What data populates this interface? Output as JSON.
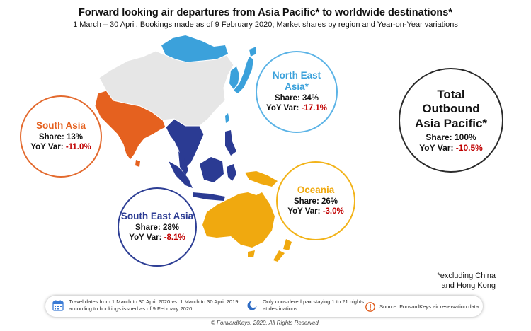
{
  "header": {
    "title": "Forward looking air departures from Asia Pacific* to worldwide destinations*",
    "subtitle": "1 March – 30 April. Bookings made as of 9 February 2020; Market shares by region and Year-on-Year variations"
  },
  "regions": {
    "north_east_asia": {
      "name": "North East Asia*",
      "share": "Share: 34%",
      "yoy_label": "YoY Var:",
      "yoy_value": "-17.1%",
      "color": "#3ba1db"
    },
    "south_asia": {
      "name": "South Asia",
      "share": "Share: 13%",
      "yoy_label": "YoY Var:",
      "yoy_value": "-11.0%",
      "color": "#e5611f"
    },
    "south_east_asia": {
      "name": "South East Asia",
      "share": "Share: 28%",
      "yoy_label": "YoY Var:",
      "yoy_value": "-8.1%",
      "color": "#2b3b93"
    },
    "oceania": {
      "name": "Oceania",
      "share": "Share: 26%",
      "yoy_label": "YoY Var:",
      "yoy_value": "-3.0%",
      "color": "#f0a90f"
    },
    "total": {
      "name": "Total Outbound Asia Pacific*",
      "share": "Share: 100%",
      "yoy_label": "YoY Var:",
      "yoy_value": "-10.5%",
      "color": "#2b2b2b"
    }
  },
  "excluded_color": "#e6e6e6",
  "note": {
    "line1": "*excluding China",
    "line2": "and Hong Kong"
  },
  "footer": {
    "dates_icon": "calendar-icon",
    "dates_text": "Travel dates from 1 March to 30 April 2020 vs. 1 March to 30 April 2019, according to bookings issued as of 9 February 2020.",
    "stay_icon": "moon-icon",
    "stay_text": "Only considered pax staying 1 to 21 nights at destinations.",
    "source_icon": "warning-icon",
    "source_text": "Source: ForwardKeys air reservation data."
  },
  "copyright": "© ForwardKeys, 2020. All Rights Reserved."
}
